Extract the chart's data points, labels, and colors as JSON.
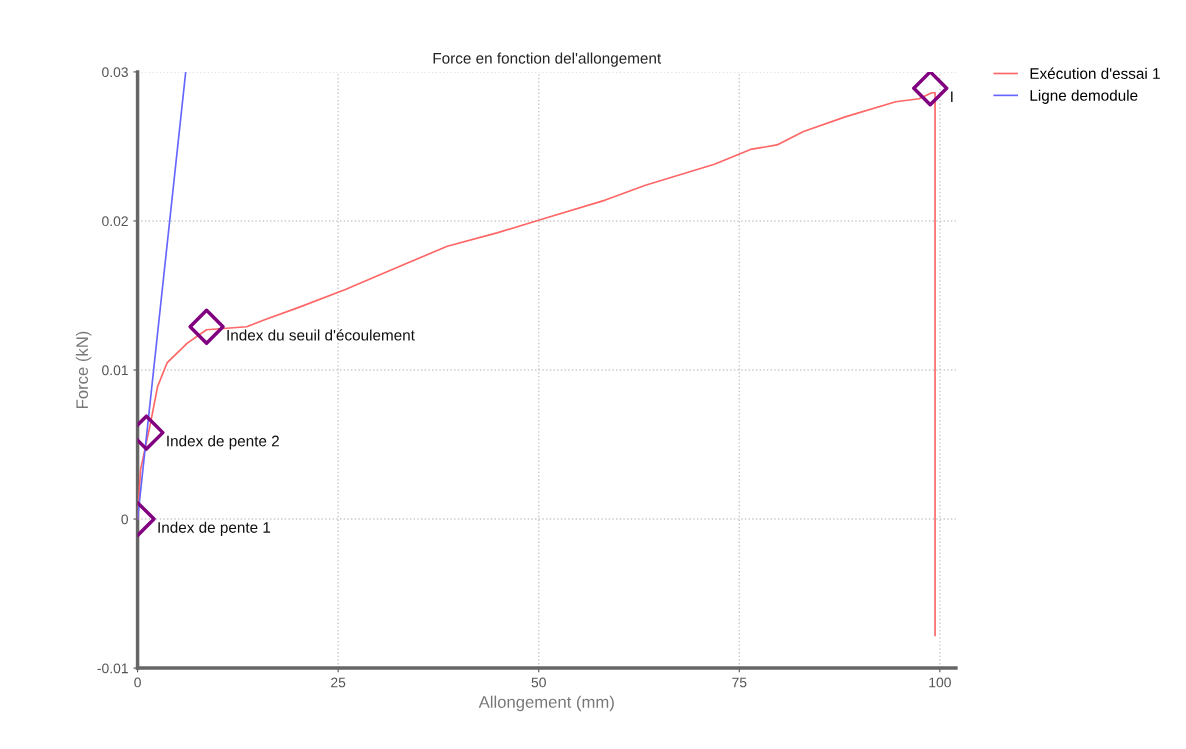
{
  "chart_data": {
    "type": "line",
    "title": "Force en fonction del'allongement",
    "xlabel": "Allongement (mm)",
    "ylabel": "Force (kN)",
    "xlim": [
      0,
      102
    ],
    "ylim": [
      -0.01,
      0.03
    ],
    "xticks": [
      0,
      25,
      50,
      75,
      100
    ],
    "yticks": [
      {
        "value": -0.01,
        "label": "-0.01"
      },
      0,
      0.01,
      0.02,
      0.03
    ],
    "grid": true,
    "legend": "top right",
    "line_style": "solid",
    "series": [
      {
        "name": "Exécution d'essai 1",
        "color": "#ff6666",
        "x": [
          0,
          0.37,
          1.6,
          2.5,
          3.7,
          6.2,
          8.6,
          13.6,
          16,
          20.1,
          25.9,
          32.4,
          38.6,
          44.8,
          50.9,
          58.3,
          63.3,
          71.9,
          76.4,
          79.7,
          83,
          88.3,
          94.5,
          97.4,
          99,
          99.4,
          99.4
        ],
        "values": [
          0,
          0.0033,
          0.0064,
          0.0089,
          0.0105,
          0.0118,
          0.0127,
          0.0129,
          0.0134,
          0.0142,
          0.0154,
          0.0169,
          0.0183,
          0.0192,
          0.0202,
          0.0214,
          0.0224,
          0.0238,
          0.0248,
          0.0251,
          0.026,
          0.027,
          0.028,
          0.0282,
          0.0286,
          0.0286,
          -0.0078
        ]
      },
      {
        "name": "Ligne demodule",
        "color": "#6666ff",
        "x": [
          0,
          6.0
        ],
        "values": [
          0,
          0.03
        ]
      },
      {
        "type": "scatter",
        "color": "#800080",
        "marker": "diamond",
        "x": [
          0,
          1.1,
          8.6,
          98.8
        ],
        "values": [
          0,
          0.0058,
          0.0129,
          0.0289
        ]
      }
    ],
    "annotations": [
      {
        "text": "Index de pente 1",
        "x": 0,
        "y": 0
      },
      {
        "text": "Index de pente 2",
        "x": 1.1,
        "y": 0.0058
      },
      {
        "text": "Index du seuil d'écoulement",
        "x": 8.6,
        "y": 0.0129
      },
      {
        "text": "I",
        "x": 98.8,
        "y": 0.0289
      }
    ]
  }
}
